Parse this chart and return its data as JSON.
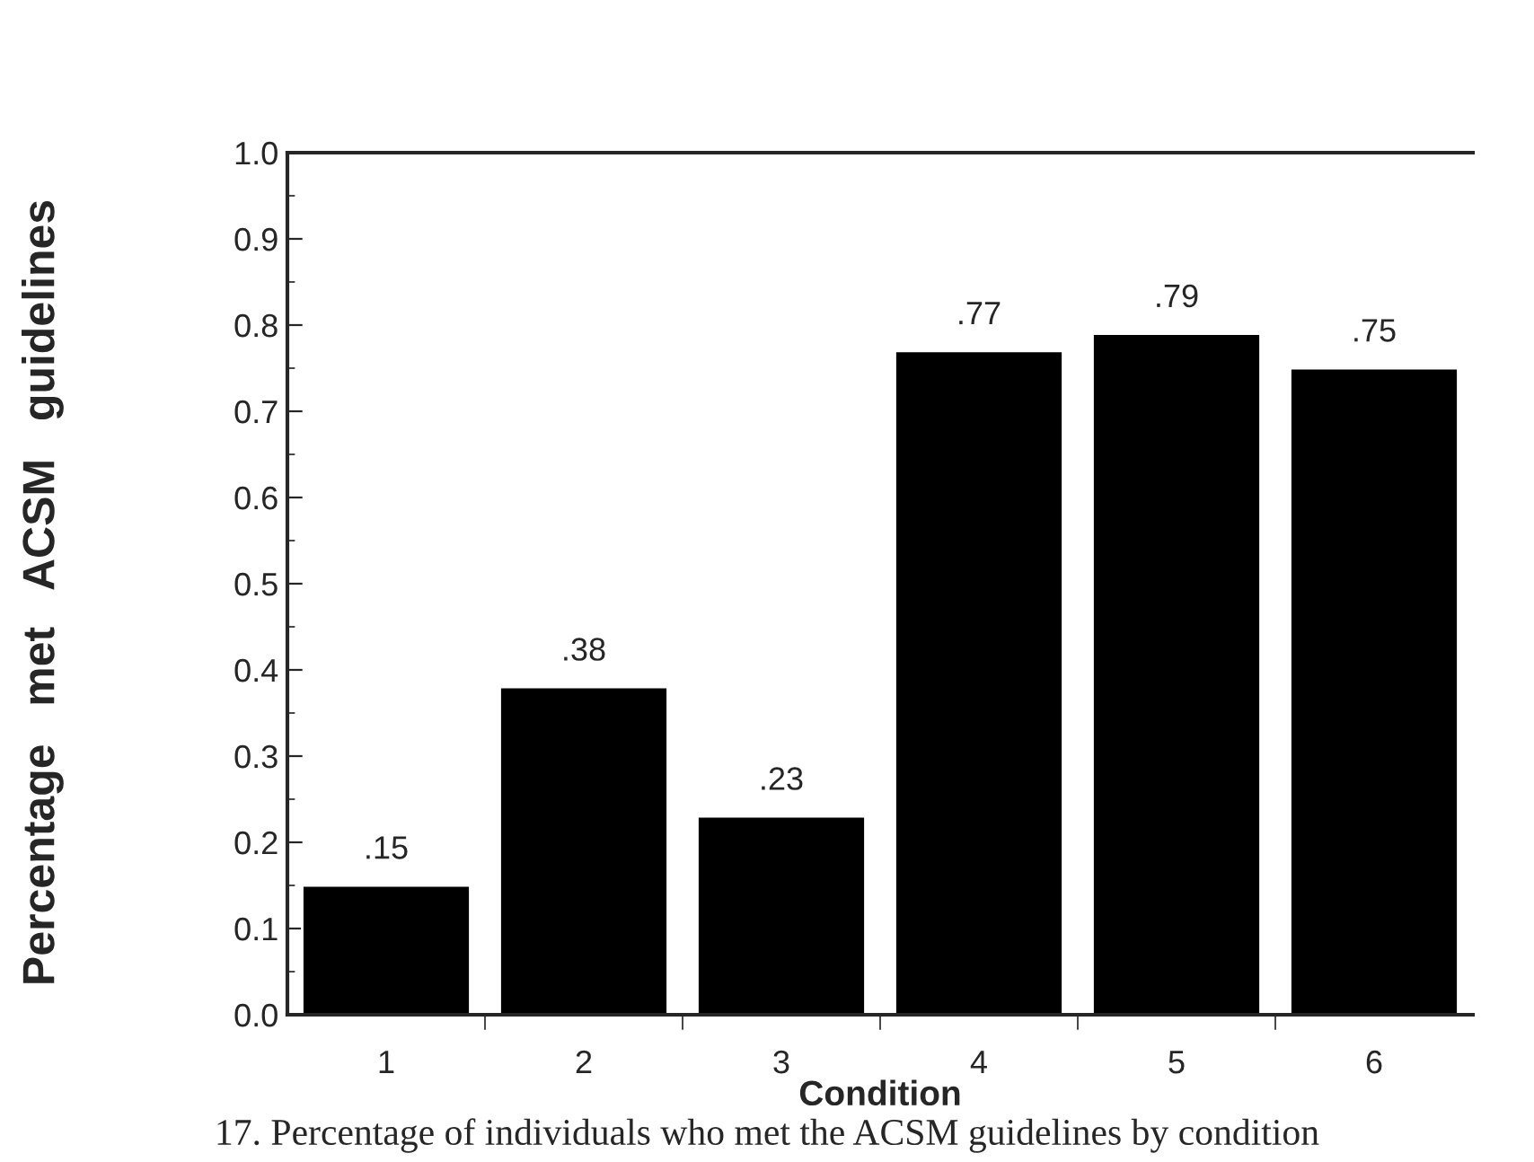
{
  "chart_data": {
    "type": "bar",
    "categories": [
      "1",
      "2",
      "3",
      "4",
      "5",
      "6"
    ],
    "values": [
      0.15,
      0.38,
      0.23,
      0.77,
      0.79,
      0.75
    ],
    "value_labels": [
      ".15",
      ".38",
      ".23",
      ".77",
      ".79",
      ".75"
    ],
    "color": "#000000",
    "xlabel": "Condition",
    "ylabel": "Percentage   met   ACSM   guidelines",
    "ylim": [
      0,
      1.0
    ],
    "yticks": [
      {
        "value": 0,
        "label": "0.0"
      },
      0.1,
      0.2,
      0.3,
      0.4,
      0.5,
      0.6,
      0.7,
      0.8,
      0.9,
      {
        "value": 1,
        "label": "1.0"
      }
    ],
    "annotations": [
      "17. Percentage of individuals who met the ACSM guidelines by condition"
    ],
    "grid": false
  }
}
